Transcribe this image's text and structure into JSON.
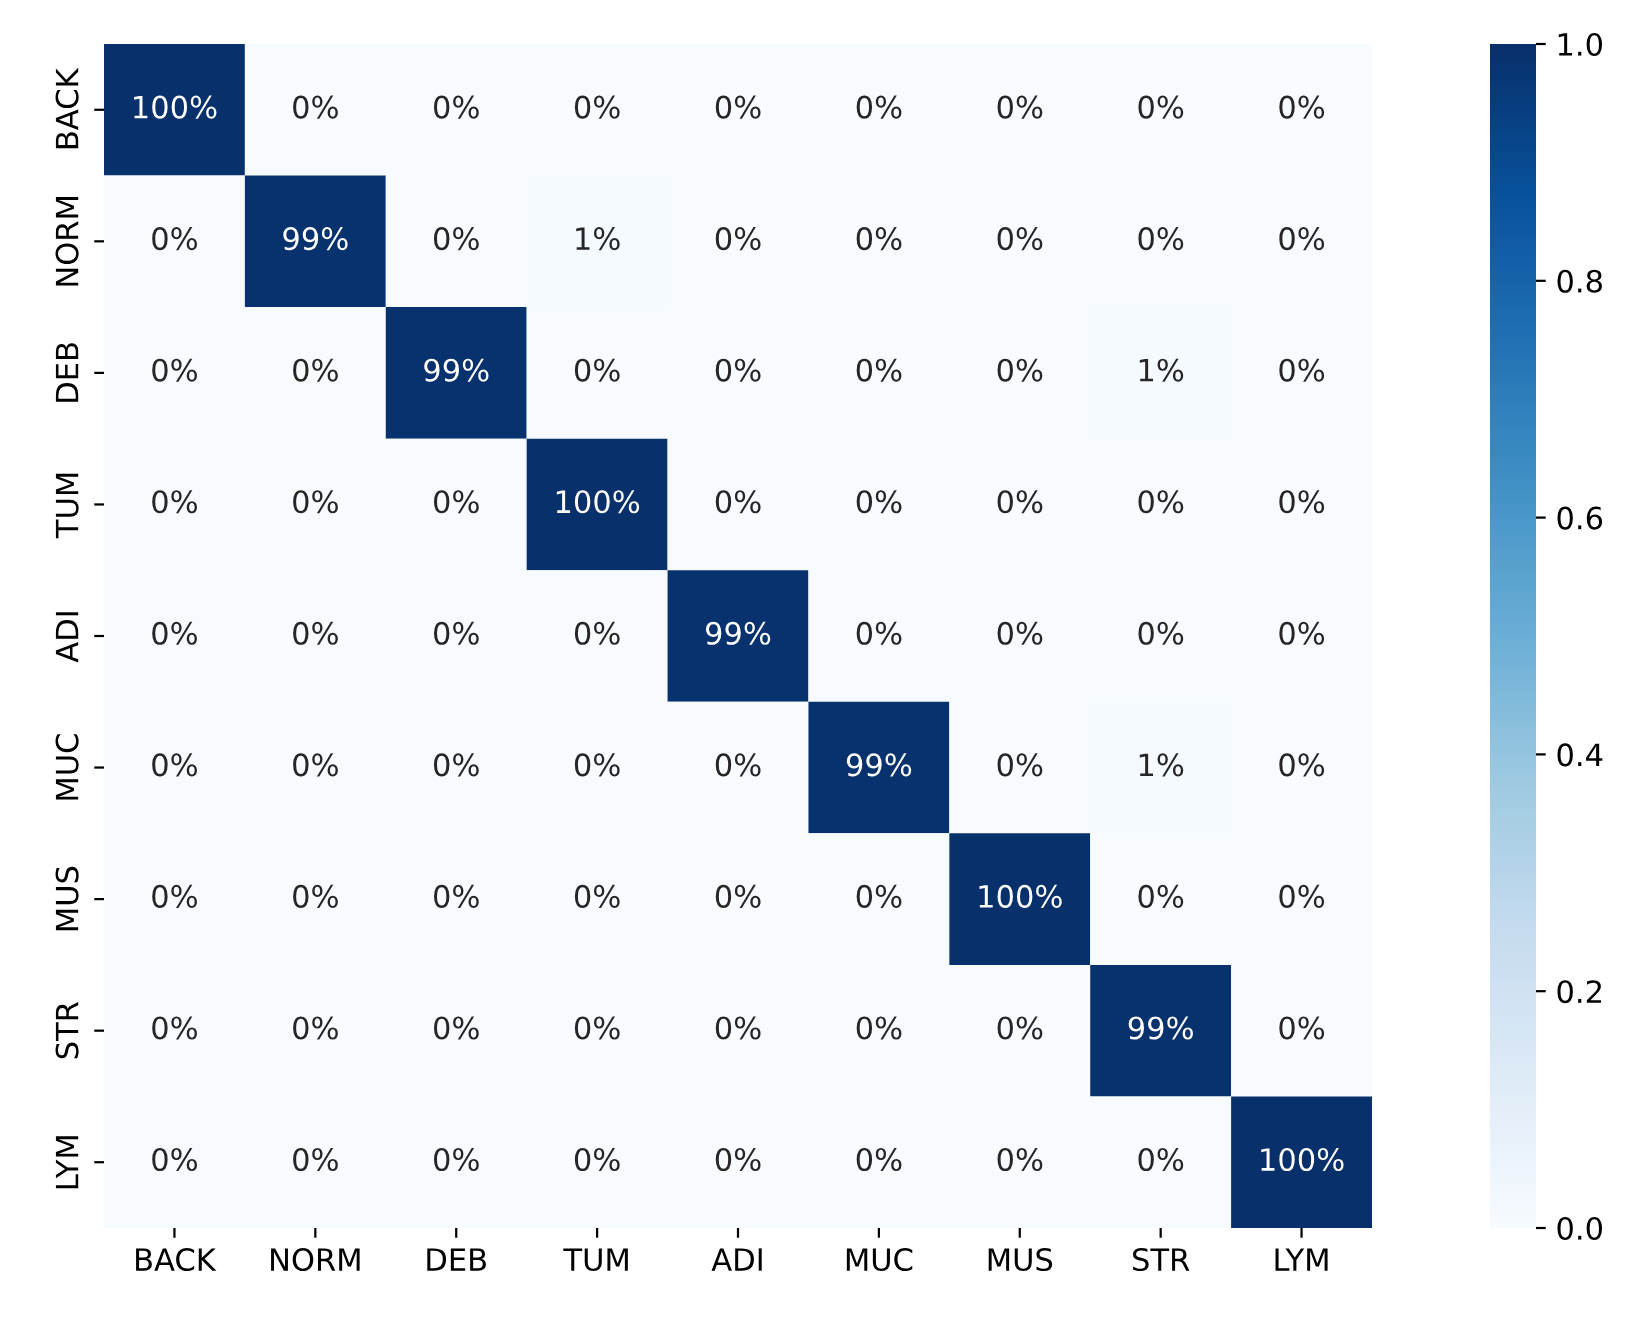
{
  "chart_data": {
    "type": "heatmap",
    "categories": [
      "BACK",
      "NORM",
      "DEB",
      "TUM",
      "ADI",
      "MUC",
      "MUS",
      "STR",
      "LYM"
    ],
    "y_categories": [
      "BACK",
      "NORM",
      "DEB",
      "TUM",
      "ADI",
      "MUC",
      "MUS",
      "STR",
      "LYM"
    ],
    "cells": [
      [
        1.0,
        0,
        0,
        0,
        0,
        0,
        0,
        0,
        0
      ],
      [
        0,
        0.99,
        0,
        0.01,
        0,
        0,
        0,
        0,
        0
      ],
      [
        0,
        0,
        0.99,
        0,
        0,
        0,
        0,
        0.01,
        0
      ],
      [
        0,
        0,
        0,
        1.0,
        0,
        0,
        0,
        0,
        0
      ],
      [
        0,
        0,
        0,
        0,
        0.99,
        0,
        0,
        0,
        0
      ],
      [
        0,
        0,
        0,
        0,
        0,
        0.99,
        0,
        0.01,
        0
      ],
      [
        0,
        0,
        0,
        0,
        0,
        0,
        1.0,
        0,
        0
      ],
      [
        0,
        0,
        0,
        0,
        0,
        0,
        0,
        0.99,
        0
      ],
      [
        0,
        0,
        0,
        0,
        0,
        0,
        0,
        0,
        1.0
      ]
    ],
    "cell_labels": [
      [
        "100%",
        "0%",
        "0%",
        "0%",
        "0%",
        "0%",
        "0%",
        "0%",
        "0%"
      ],
      [
        "0%",
        "99%",
        "0%",
        "1%",
        "0%",
        "0%",
        "0%",
        "0%",
        "0%"
      ],
      [
        "0%",
        "0%",
        "99%",
        "0%",
        "0%",
        "0%",
        "0%",
        "1%",
        "0%"
      ],
      [
        "0%",
        "0%",
        "0%",
        "100%",
        "0%",
        "0%",
        "0%",
        "0%",
        "0%"
      ],
      [
        "0%",
        "0%",
        "0%",
        "0%",
        "99%",
        "0%",
        "0%",
        "0%",
        "0%"
      ],
      [
        "0%",
        "0%",
        "0%",
        "0%",
        "0%",
        "99%",
        "0%",
        "1%",
        "0%"
      ],
      [
        "0%",
        "0%",
        "0%",
        "0%",
        "0%",
        "0%",
        "100%",
        "0%",
        "0%"
      ],
      [
        "0%",
        "0%",
        "0%",
        "0%",
        "0%",
        "0%",
        "0%",
        "99%",
        "0%"
      ],
      [
        "0%",
        "0%",
        "0%",
        "0%",
        "0%",
        "0%",
        "0%",
        "0%",
        "100%"
      ]
    ],
    "clim": [
      0,
      1
    ],
    "cticks": [
      {
        "value": 0,
        "label": "0.0"
      },
      {
        "value": 0.2,
        "label": "0.2"
      },
      {
        "value": 0.4,
        "label": "0.4"
      },
      {
        "value": 0.6,
        "label": "0.6"
      },
      {
        "value": 0.8,
        "label": "0.8"
      },
      {
        "value": 1,
        "label": "1.0"
      }
    ]
  }
}
